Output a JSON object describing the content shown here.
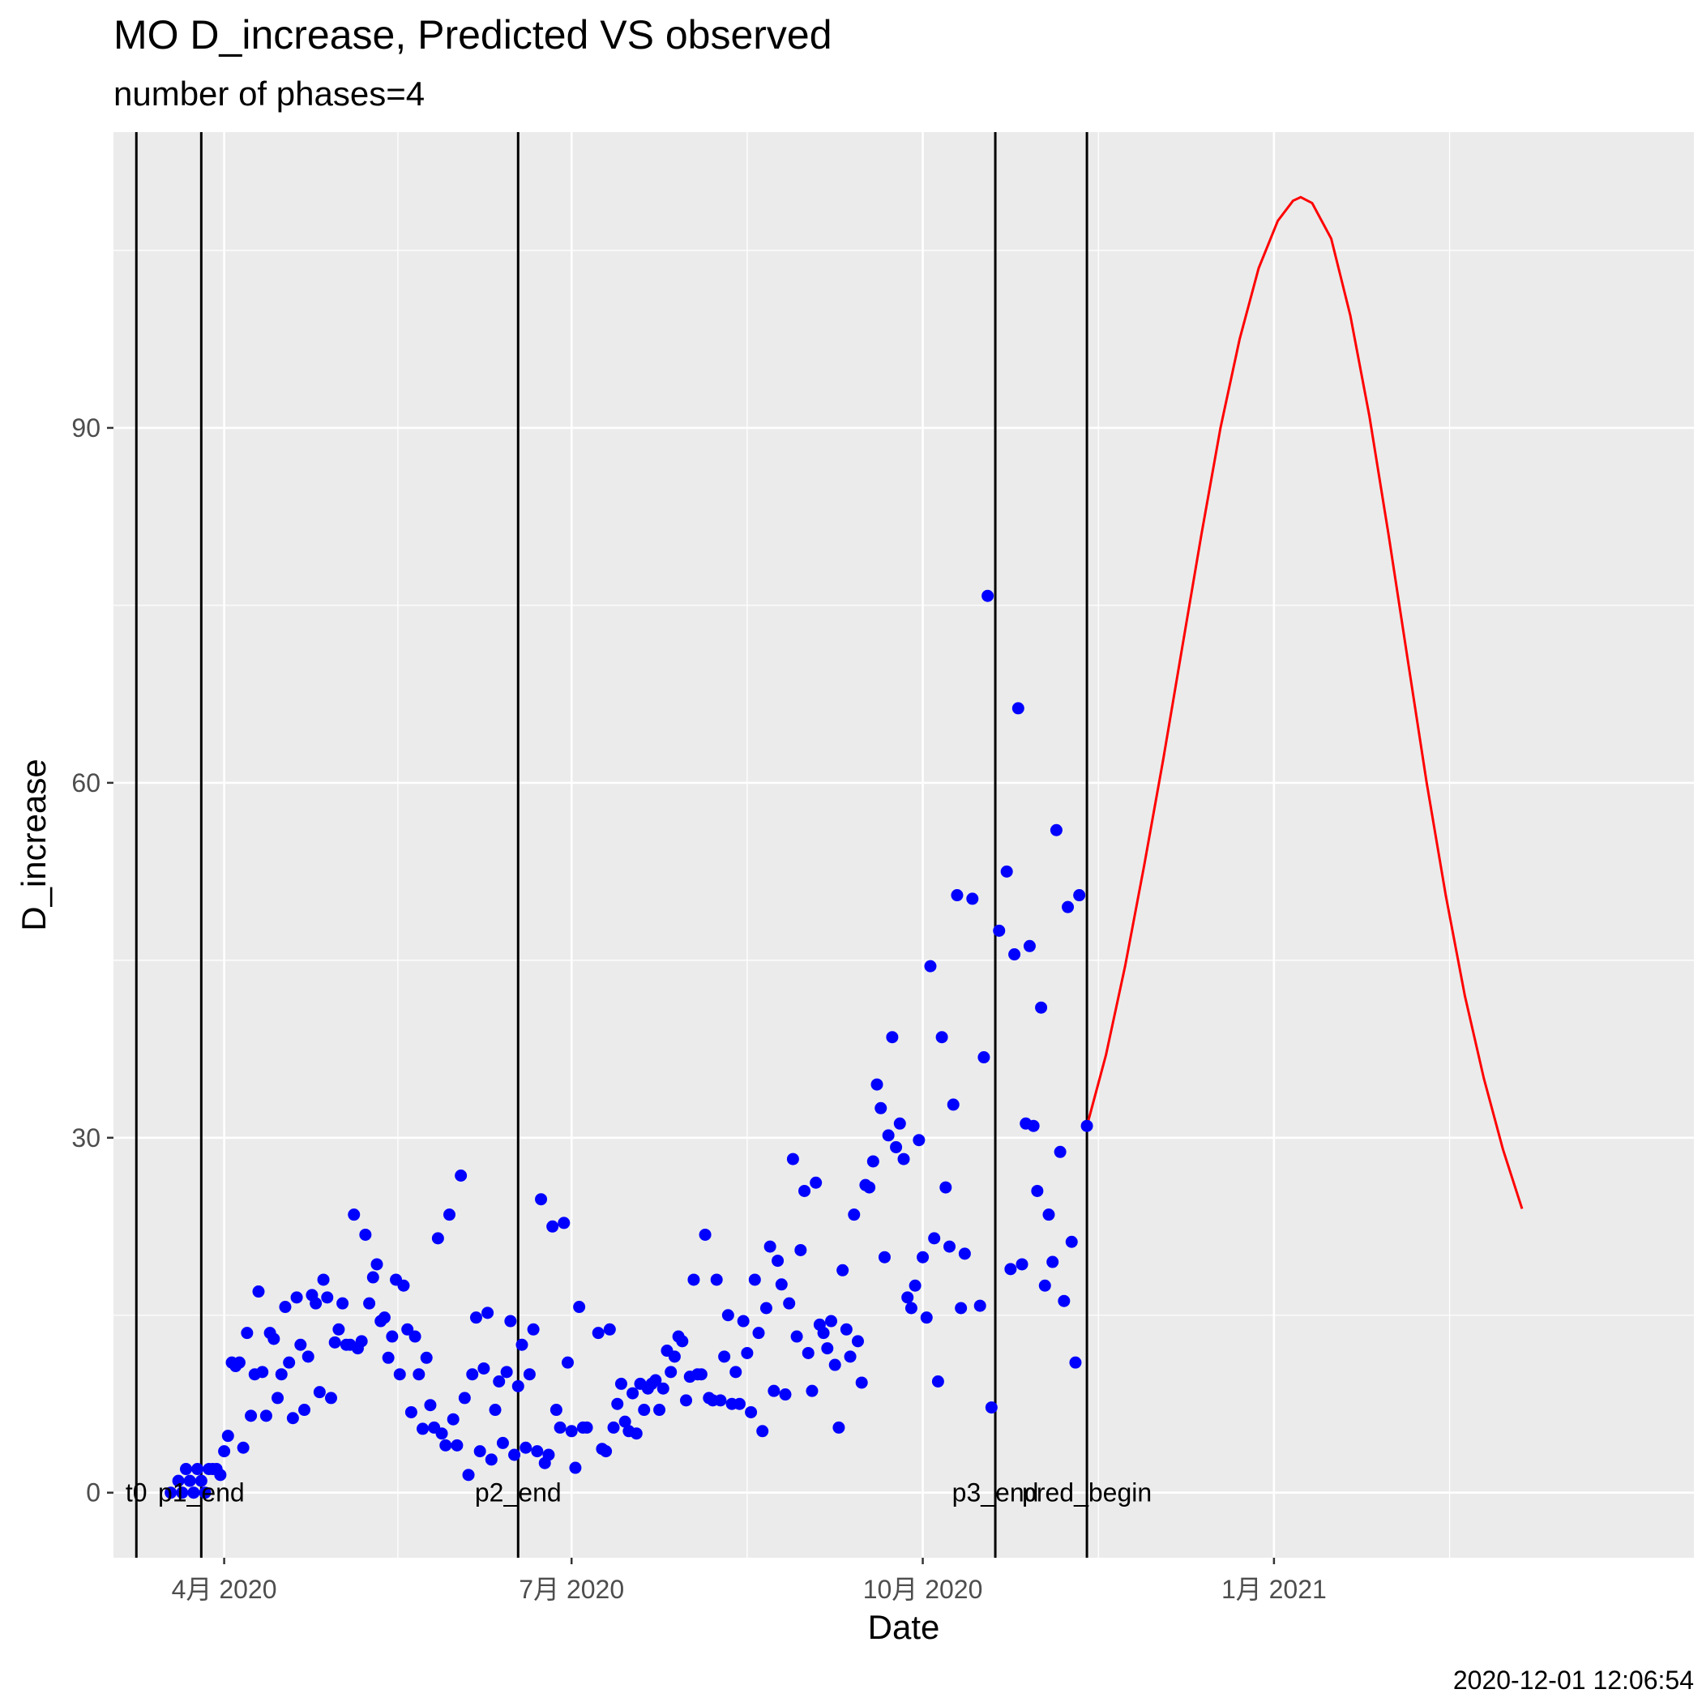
{
  "title": "MO D_increase, Predicted VS observed",
  "subtitle": "number of phases=4",
  "caption": "2020-12-01 12:06:54",
  "chart_data": {
    "type": "scatter",
    "xlabel": "Date",
    "ylabel": "D_increase",
    "xlim": [
      "2020-03-03",
      "2021-04-21"
    ],
    "ylim": [
      -5.5,
      115
    ],
    "x_ticks": [
      {
        "date": "2020-04-01",
        "label": "4月 2020"
      },
      {
        "date": "2020-07-01",
        "label": "7月 2020"
      },
      {
        "date": "2020-10-01",
        "label": "10月 2020"
      },
      {
        "date": "2021-01-01",
        "label": "1月 2021"
      }
    ],
    "y_ticks": [
      0,
      30,
      60,
      90
    ],
    "grid": true,
    "colors": {
      "observed": "#0000ff",
      "predicted": "#ff0000",
      "vlines": "#000000",
      "panel": "#ebebeb",
      "grid": "#ffffff"
    },
    "vlines": [
      {
        "date": "2020-03-09",
        "label": "t0"
      },
      {
        "date": "2020-03-26",
        "label": "p1_end"
      },
      {
        "date": "2020-06-17",
        "label": "p2_end"
      },
      {
        "date": "2020-10-20",
        "label": "p3_end"
      },
      {
        "date": "2020-11-13",
        "label": "pred_begin"
      }
    ],
    "series": [
      {
        "kind": "points",
        "points": [
          [
            "2020-03-18",
            0
          ],
          [
            "2020-03-20",
            1
          ],
          [
            "2020-03-21",
            0
          ],
          [
            "2020-03-22",
            2
          ],
          [
            "2020-03-23",
            1
          ],
          [
            "2020-03-24",
            0
          ],
          [
            "2020-03-25",
            2
          ],
          [
            "2020-03-26",
            1
          ],
          [
            "2020-03-27",
            0
          ],
          [
            "2020-03-28",
            2
          ],
          [
            "2020-03-29",
            2
          ],
          [
            "2020-03-30",
            2
          ],
          [
            "2020-03-31",
            1.5
          ],
          [
            "2020-04-01",
            3.5
          ],
          [
            "2020-04-02",
            4.8
          ],
          [
            "2020-04-03",
            11
          ],
          [
            "2020-04-04",
            10.7
          ],
          [
            "2020-04-05",
            11
          ],
          [
            "2020-04-06",
            3.8
          ],
          [
            "2020-04-07",
            13.5
          ],
          [
            "2020-04-08",
            6.5
          ],
          [
            "2020-04-09",
            10
          ],
          [
            "2020-04-10",
            17
          ],
          [
            "2020-04-11",
            10.2
          ],
          [
            "2020-04-12",
            6.5
          ],
          [
            "2020-04-13",
            13.5
          ],
          [
            "2020-04-14",
            13
          ],
          [
            "2020-04-15",
            8
          ],
          [
            "2020-04-16",
            10
          ],
          [
            "2020-04-17",
            15.7
          ],
          [
            "2020-04-18",
            11
          ],
          [
            "2020-04-19",
            6.3
          ],
          [
            "2020-04-20",
            16.5
          ],
          [
            "2020-04-21",
            12.5
          ],
          [
            "2020-04-22",
            7
          ],
          [
            "2020-04-23",
            11.5
          ],
          [
            "2020-04-24",
            16.7
          ],
          [
            "2020-04-25",
            16
          ],
          [
            "2020-04-26",
            8.5
          ],
          [
            "2020-04-27",
            18
          ],
          [
            "2020-04-28",
            16.5
          ],
          [
            "2020-04-29",
            8
          ],
          [
            "2020-04-30",
            12.7
          ],
          [
            "2020-05-01",
            13.8
          ],
          [
            "2020-05-02",
            16
          ],
          [
            "2020-05-03",
            12.5
          ],
          [
            "2020-05-04",
            12.5
          ],
          [
            "2020-05-05",
            23.5
          ],
          [
            "2020-05-06",
            12.2
          ],
          [
            "2020-05-07",
            12.8
          ],
          [
            "2020-05-08",
            21.8
          ],
          [
            "2020-05-09",
            16
          ],
          [
            "2020-05-10",
            18.2
          ],
          [
            "2020-05-11",
            19.3
          ],
          [
            "2020-05-12",
            14.5
          ],
          [
            "2020-05-13",
            14.8
          ],
          [
            "2020-05-14",
            11.4
          ],
          [
            "2020-05-15",
            13.2
          ],
          [
            "2020-05-16",
            18
          ],
          [
            "2020-05-17",
            10
          ],
          [
            "2020-05-18",
            17.5
          ],
          [
            "2020-05-19",
            13.8
          ],
          [
            "2020-05-20",
            6.8
          ],
          [
            "2020-05-21",
            13.2
          ],
          [
            "2020-05-22",
            10
          ],
          [
            "2020-05-23",
            5.4
          ],
          [
            "2020-05-24",
            11.4
          ],
          [
            "2020-05-25",
            7.4
          ],
          [
            "2020-05-26",
            5.5
          ],
          [
            "2020-05-27",
            21.5
          ],
          [
            "2020-05-28",
            5
          ],
          [
            "2020-05-29",
            4
          ],
          [
            "2020-05-30",
            23.5
          ],
          [
            "2020-05-31",
            6.2
          ],
          [
            "2020-06-01",
            4
          ],
          [
            "2020-06-02",
            26.8
          ],
          [
            "2020-06-03",
            8
          ],
          [
            "2020-06-04",
            1.5
          ],
          [
            "2020-06-05",
            10
          ],
          [
            "2020-06-06",
            14.8
          ],
          [
            "2020-06-07",
            3.5
          ],
          [
            "2020-06-08",
            10.5
          ],
          [
            "2020-06-09",
            15.2
          ],
          [
            "2020-06-10",
            2.8
          ],
          [
            "2020-06-11",
            7
          ],
          [
            "2020-06-12",
            9.4
          ],
          [
            "2020-06-13",
            4.2
          ],
          [
            "2020-06-14",
            10.2
          ],
          [
            "2020-06-15",
            14.5
          ],
          [
            "2020-06-16",
            3.2
          ],
          [
            "2020-06-17",
            9
          ],
          [
            "2020-06-18",
            12.5
          ],
          [
            "2020-06-19",
            3.8
          ],
          [
            "2020-06-20",
            10
          ],
          [
            "2020-06-21",
            13.8
          ],
          [
            "2020-06-22",
            3.5
          ],
          [
            "2020-06-23",
            24.8
          ],
          [
            "2020-06-24",
            2.5
          ],
          [
            "2020-06-25",
            3.2
          ],
          [
            "2020-06-26",
            22.5
          ],
          [
            "2020-06-27",
            7
          ],
          [
            "2020-06-28",
            5.5
          ],
          [
            "2020-06-29",
            22.8
          ],
          [
            "2020-06-30",
            11
          ],
          [
            "2020-07-01",
            5.2
          ],
          [
            "2020-07-02",
            2.1
          ],
          [
            "2020-07-03",
            15.7
          ],
          [
            "2020-07-04",
            5.5
          ],
          [
            "2020-07-05",
            5.5
          ],
          [
            "2020-07-08",
            13.5
          ],
          [
            "2020-07-09",
            3.7
          ],
          [
            "2020-07-10",
            3.5
          ],
          [
            "2020-07-11",
            13.8
          ],
          [
            "2020-07-12",
            5.5
          ],
          [
            "2020-07-13",
            7.5
          ],
          [
            "2020-07-14",
            9.2
          ],
          [
            "2020-07-15",
            6
          ],
          [
            "2020-07-16",
            5.2
          ],
          [
            "2020-07-17",
            8.4
          ],
          [
            "2020-07-18",
            5
          ],
          [
            "2020-07-19",
            9.2
          ],
          [
            "2020-07-20",
            7
          ],
          [
            "2020-07-21",
            8.8
          ],
          [
            "2020-07-22",
            9.2
          ],
          [
            "2020-07-23",
            9.5
          ],
          [
            "2020-07-24",
            7
          ],
          [
            "2020-07-25",
            8.8
          ],
          [
            "2020-07-26",
            12
          ],
          [
            "2020-07-27",
            10.2
          ],
          [
            "2020-07-28",
            11.5
          ],
          [
            "2020-07-29",
            13.2
          ],
          [
            "2020-07-30",
            12.8
          ],
          [
            "2020-07-31",
            7.8
          ],
          [
            "2020-08-01",
            9.8
          ],
          [
            "2020-08-02",
            18
          ],
          [
            "2020-08-03",
            10
          ],
          [
            "2020-08-04",
            10
          ],
          [
            "2020-08-05",
            21.8
          ],
          [
            "2020-08-06",
            8
          ],
          [
            "2020-08-07",
            7.8
          ],
          [
            "2020-08-08",
            18
          ],
          [
            "2020-08-09",
            7.8
          ],
          [
            "2020-08-10",
            11.5
          ],
          [
            "2020-08-11",
            15
          ],
          [
            "2020-08-12",
            7.5
          ],
          [
            "2020-08-13",
            10.2
          ],
          [
            "2020-08-14",
            7.5
          ],
          [
            "2020-08-15",
            14.5
          ],
          [
            "2020-08-16",
            11.8
          ],
          [
            "2020-08-17",
            6.8
          ],
          [
            "2020-08-18",
            18
          ],
          [
            "2020-08-19",
            13.5
          ],
          [
            "2020-08-20",
            5.2
          ],
          [
            "2020-08-21",
            15.6
          ],
          [
            "2020-08-22",
            20.8
          ],
          [
            "2020-08-23",
            8.6
          ],
          [
            "2020-08-24",
            19.6
          ],
          [
            "2020-08-25",
            17.6
          ],
          [
            "2020-08-26",
            8.3
          ],
          [
            "2020-08-27",
            16
          ],
          [
            "2020-08-28",
            28.2
          ],
          [
            "2020-08-29",
            13.2
          ],
          [
            "2020-08-30",
            20.5
          ],
          [
            "2020-08-31",
            25.5
          ],
          [
            "2020-09-01",
            11.8
          ],
          [
            "2020-09-02",
            8.6
          ],
          [
            "2020-09-03",
            26.2
          ],
          [
            "2020-09-04",
            14.2
          ],
          [
            "2020-09-05",
            13.5
          ],
          [
            "2020-09-06",
            12.2
          ],
          [
            "2020-09-07",
            14.5
          ],
          [
            "2020-09-08",
            10.8
          ],
          [
            "2020-09-09",
            5.5
          ],
          [
            "2020-09-10",
            18.8
          ],
          [
            "2020-09-11",
            13.8
          ],
          [
            "2020-09-12",
            11.5
          ],
          [
            "2020-09-13",
            23.5
          ],
          [
            "2020-09-14",
            12.8
          ],
          [
            "2020-09-15",
            9.3
          ],
          [
            "2020-09-16",
            26
          ],
          [
            "2020-09-17",
            25.8
          ],
          [
            "2020-09-18",
            28
          ],
          [
            "2020-09-19",
            34.5
          ],
          [
            "2020-09-20",
            32.5
          ],
          [
            "2020-09-21",
            19.9
          ],
          [
            "2020-09-22",
            30.2
          ],
          [
            "2020-09-23",
            38.5
          ],
          [
            "2020-09-24",
            29.2
          ],
          [
            "2020-09-25",
            31.2
          ],
          [
            "2020-09-26",
            28.2
          ],
          [
            "2020-09-27",
            16.5
          ],
          [
            "2020-09-28",
            15.6
          ],
          [
            "2020-09-29",
            17.5
          ],
          [
            "2020-09-30",
            29.8
          ],
          [
            "2020-10-01",
            19.9
          ],
          [
            "2020-10-02",
            14.8
          ],
          [
            "2020-10-03",
            44.5
          ],
          [
            "2020-10-04",
            21.5
          ],
          [
            "2020-10-05",
            9.4
          ],
          [
            "2020-10-06",
            38.5
          ],
          [
            "2020-10-07",
            25.8
          ],
          [
            "2020-10-08",
            20.8
          ],
          [
            "2020-10-09",
            32.8
          ],
          [
            "2020-10-10",
            50.5
          ],
          [
            "2020-10-11",
            15.6
          ],
          [
            "2020-10-12",
            20.2
          ],
          [
            "2020-10-14",
            50.2
          ],
          [
            "2020-10-16",
            15.8
          ],
          [
            "2020-10-17",
            36.8
          ],
          [
            "2020-10-18",
            75.8
          ],
          [
            "2020-10-19",
            7.2
          ],
          [
            "2020-10-21",
            47.5
          ],
          [
            "2020-10-23",
            52.5
          ],
          [
            "2020-10-24",
            18.9
          ],
          [
            "2020-10-25",
            45.5
          ],
          [
            "2020-10-26",
            66.3
          ],
          [
            "2020-10-27",
            19.3
          ],
          [
            "2020-10-28",
            31.2
          ],
          [
            "2020-10-29",
            46.2
          ],
          [
            "2020-10-30",
            31
          ],
          [
            "2020-10-31",
            25.5
          ],
          [
            "2020-11-01",
            41
          ],
          [
            "2020-11-02",
            17.5
          ],
          [
            "2020-11-03",
            23.5
          ],
          [
            "2020-11-04",
            19.5
          ],
          [
            "2020-11-05",
            56
          ],
          [
            "2020-11-06",
            28.8
          ],
          [
            "2020-11-07",
            16.2
          ],
          [
            "2020-11-08",
            49.5
          ],
          [
            "2020-11-09",
            21.2
          ],
          [
            "2020-11-10",
            11
          ],
          [
            "2020-11-11",
            50.5
          ],
          [
            "2020-11-13",
            31
          ]
        ]
      },
      {
        "kind": "line",
        "points": [
          [
            "2020-11-13",
            31
          ],
          [
            "2020-11-18",
            37
          ],
          [
            "2020-11-23",
            44.5
          ],
          [
            "2020-11-28",
            53
          ],
          [
            "2020-12-03",
            62
          ],
          [
            "2020-12-08",
            71.5
          ],
          [
            "2020-12-13",
            81
          ],
          [
            "2020-12-18",
            90
          ],
          [
            "2020-12-23",
            97.5
          ],
          [
            "2020-12-28",
            103.5
          ],
          [
            "2021-01-02",
            107.5
          ],
          [
            "2021-01-06",
            109.2
          ],
          [
            "2021-01-08",
            109.5
          ],
          [
            "2021-01-11",
            109
          ],
          [
            "2021-01-16",
            106
          ],
          [
            "2021-01-21",
            99.5
          ],
          [
            "2021-01-26",
            91
          ],
          [
            "2021-01-31",
            81
          ],
          [
            "2021-02-05",
            70.5
          ],
          [
            "2021-02-10",
            60
          ],
          [
            "2021-02-15",
            50.5
          ],
          [
            "2021-02-20",
            42
          ],
          [
            "2021-02-25",
            35
          ],
          [
            "2021-03-02",
            29
          ],
          [
            "2021-03-07",
            24
          ]
        ]
      }
    ]
  }
}
